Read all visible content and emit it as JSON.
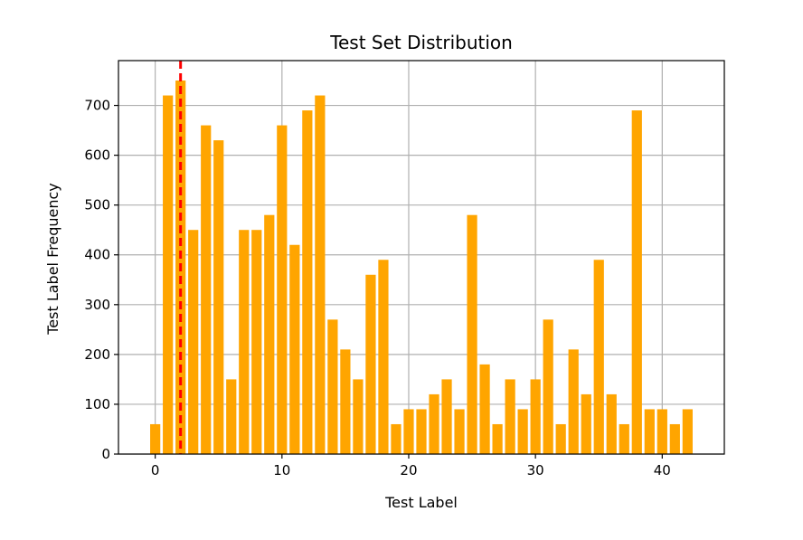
{
  "chart_data": {
    "type": "bar",
    "title": "Test Set Distribution",
    "xlabel": "Test Label",
    "ylabel": "Test Label Frequency",
    "xlim": [
      -2.9,
      44.9
    ],
    "ylim": [
      0,
      790
    ],
    "xticks": [
      0,
      10,
      20,
      30,
      40
    ],
    "yticks": [
      0,
      100,
      200,
      300,
      400,
      500,
      600,
      700
    ],
    "grid": true,
    "bar_color": "#ffa500",
    "x": [
      0,
      1,
      2,
      3,
      4,
      5,
      6,
      7,
      8,
      9,
      10,
      11,
      12,
      13,
      14,
      15,
      16,
      17,
      18,
      19,
      20,
      21,
      22,
      23,
      24,
      25,
      26,
      27,
      28,
      29,
      30,
      31,
      32,
      33,
      34,
      35,
      36,
      37,
      38,
      39,
      40,
      41,
      42
    ],
    "values": [
      60,
      720,
      750,
      450,
      660,
      630,
      150,
      450,
      450,
      480,
      660,
      420,
      690,
      720,
      270,
      210,
      150,
      360,
      390,
      60,
      90,
      90,
      120,
      150,
      90,
      480,
      180,
      60,
      150,
      90,
      150,
      270,
      60,
      210,
      120,
      390,
      120,
      60,
      690,
      90,
      90,
      60,
      90
    ],
    "reference_line": {
      "x": 2,
      "color": "#ff0000",
      "style": "dashed"
    }
  }
}
